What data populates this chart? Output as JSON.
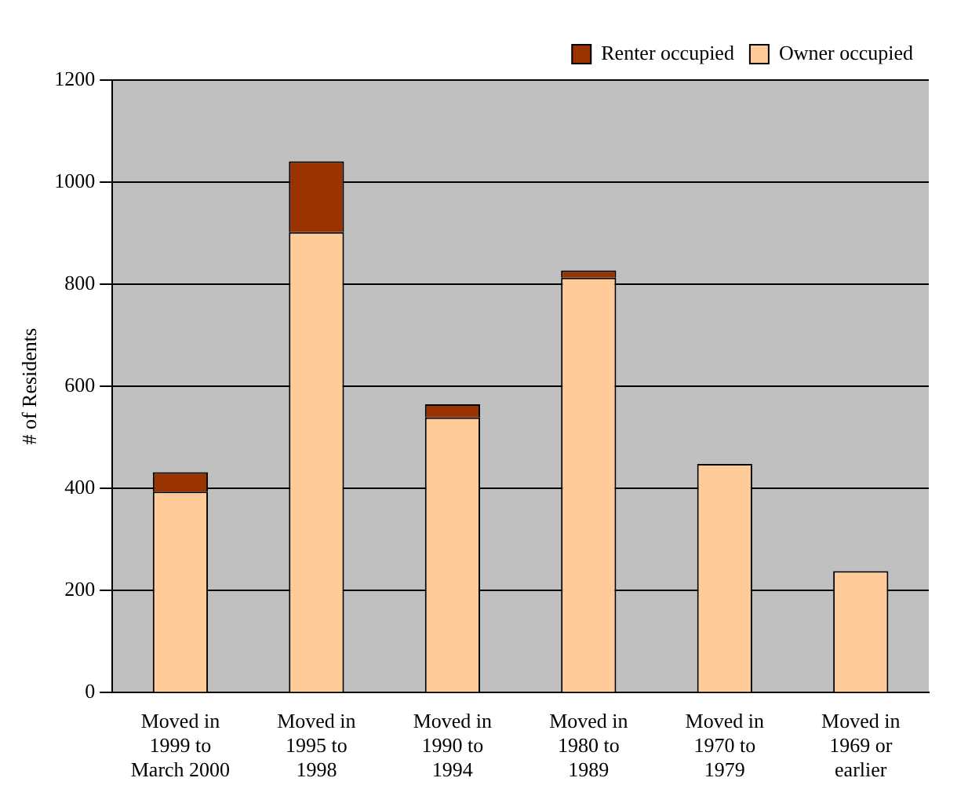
{
  "chart_data": {
    "type": "bar",
    "ylabel": "# of Residents",
    "stacked": true,
    "categories": [
      "Moved in\n1999 to\nMarch 2000",
      "Moved in\n1995 to\n1998",
      "Moved in\n1990 to\n1994",
      "Moved in\n1980 to\n1989",
      "Moved in\n1970 to\n1979",
      "Moved in\n1969 or\nearlier"
    ],
    "series": [
      {
        "name": "Owner occupied",
        "color": "#ffcc99",
        "values": [
          394,
          902,
          539,
          813,
          448,
          238
        ]
      },
      {
        "name": "Renter occupied",
        "color": "#993300",
        "values": [
          38,
          139,
          26,
          14,
          0,
          0
        ]
      }
    ],
    "ylim": [
      0,
      1200
    ],
    "yticks": [
      0,
      200,
      400,
      600,
      800,
      1000,
      1200
    ],
    "grid": "y",
    "legend": "top right"
  }
}
